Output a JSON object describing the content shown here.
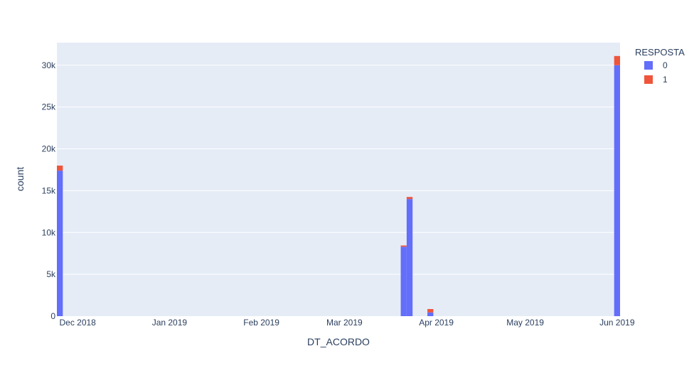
{
  "chart_data": {
    "type": "bar",
    "barmode": "stack",
    "xlabel": "DT_ACORDO",
    "ylabel": "count",
    "x_tick_labels": [
      "Dec 2018",
      "Jan 2019",
      "Feb 2019",
      "Mar 2019",
      "Apr 2019",
      "May 2019",
      "Jun 2019"
    ],
    "x_tick_dates": [
      "2018-12-01",
      "2019-01-01",
      "2019-02-01",
      "2019-03-01",
      "2019-04-01",
      "2019-05-01",
      "2019-06-01"
    ],
    "xlim": [
      "2018-11-24",
      "2019-06-02"
    ],
    "y_tick_labels": [
      "0",
      "5k",
      "10k",
      "15k",
      "20k",
      "25k",
      "30k"
    ],
    "y_tick_values": [
      0,
      5000,
      10000,
      15000,
      20000,
      25000,
      30000
    ],
    "ylim": [
      0,
      32700
    ],
    "grid": true,
    "legend_title": "RESPOSTA",
    "legend_position": "top-right",
    "bins": [
      {
        "start": "2018-11-24",
        "end": "2018-11-26"
      },
      {
        "start": "2019-03-20",
        "end": "2019-03-22"
      },
      {
        "start": "2019-03-22",
        "end": "2019-03-24"
      },
      {
        "start": "2019-03-29",
        "end": "2019-03-31"
      },
      {
        "start": "2019-05-31",
        "end": "2019-06-02"
      }
    ],
    "series": [
      {
        "name": "0",
        "color": "#636efa",
        "values": [
          17400,
          8300,
          14000,
          450,
          30000
        ]
      },
      {
        "name": "1",
        "color": "#ef553b",
        "values": [
          600,
          150,
          250,
          400,
          1100
        ]
      }
    ]
  }
}
